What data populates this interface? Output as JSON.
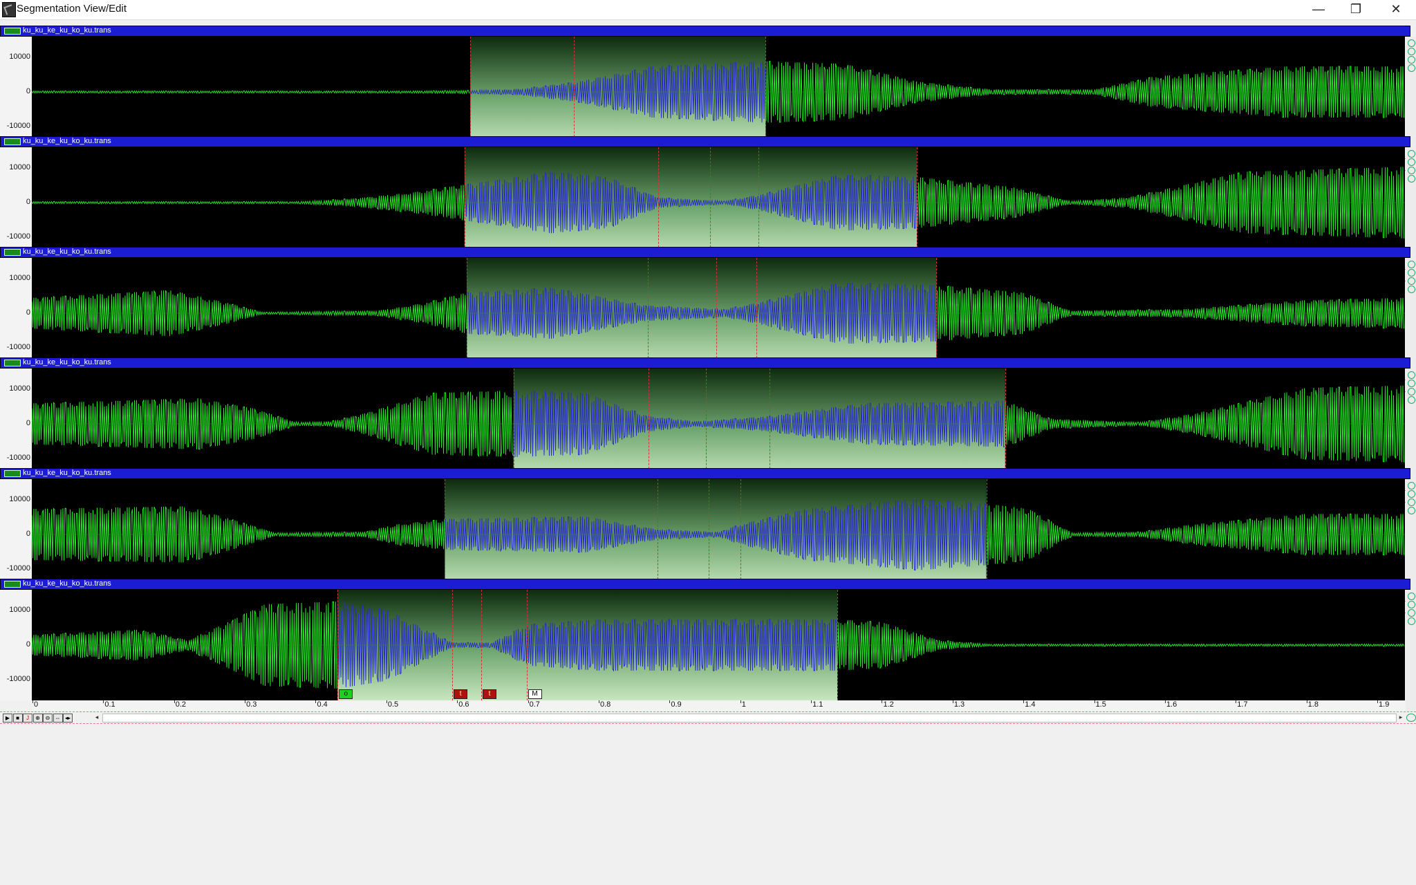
{
  "window": {
    "title": "Segmentation View/Edit",
    "minimize": "—",
    "restore": "❐",
    "close": "✕"
  },
  "colors": {
    "waveform": "#22e622",
    "selected_waveform": "#2a2ac8",
    "header": "#1c1cd2",
    "boundary": "#d83030"
  },
  "toolbar_icons": [
    "play-icon",
    "stop-icon",
    "record-icon",
    "zoom-in-icon",
    "zoom-out-icon",
    "fit-icon",
    "scroll-icon"
  ],
  "panes": [
    {
      "filename": "ku_ku_ke_ku_ko_ku.trans",
      "y_ticks": [
        "10000",
        "0",
        "-10000"
      ],
      "x_ticks": [
        "0",
        "0.1",
        "0.2",
        "0.3",
        "0.4",
        "0.5",
        "0.6",
        "0.7",
        "0.8",
        "0.9"
      ],
      "x_range": [
        0,
        0.93
      ],
      "selection": [
        0.297,
        0.497
      ],
      "boundaries": [
        0.297,
        0.367,
        0.497
      ],
      "markers": [
        {
          "t": 0.297,
          "label": "t",
          "kind": "t"
        },
        {
          "t": 0.367,
          "label": "M",
          "kind": "m"
        }
      ],
      "envelope": [
        [
          0,
          0.02
        ],
        [
          0.25,
          0.02
        ],
        [
          0.297,
          0.03
        ],
        [
          0.33,
          0.06
        ],
        [
          0.37,
          0.2
        ],
        [
          0.42,
          0.5
        ],
        [
          0.497,
          0.6
        ],
        [
          0.55,
          0.55
        ],
        [
          0.6,
          0.2
        ],
        [
          0.65,
          0.05
        ],
        [
          0.72,
          0.05
        ],
        [
          0.76,
          0.3
        ],
        [
          0.85,
          0.5
        ],
        [
          0.93,
          0.5
        ]
      ]
    },
    {
      "filename": "ku_ku_ke_ku_ko_ku.trans",
      "y_ticks": [
        "10000",
        "0",
        "-10000"
      ],
      "x_ticks": [
        "0",
        "0.1",
        "0.2",
        "0.3",
        "0.4",
        "0.5",
        "0.6",
        "0.7",
        "0.8",
        "0.9",
        "1",
        "1.1"
      ],
      "x_range": [
        0,
        1.19
      ],
      "selection": [
        0.375,
        0.767
      ],
      "boundaries": [
        0.375,
        0.543,
        0.588,
        0.63,
        0.767
      ],
      "markers": [
        {
          "t": 0.375,
          "label": "M",
          "kind": "m"
        },
        {
          "t": 0.543,
          "label": "t",
          "kind": "t"
        },
        {
          "t": 0.588,
          "label": "t",
          "kind": "t"
        },
        {
          "t": 0.63,
          "label": "M",
          "kind": "m"
        }
      ],
      "envelope": [
        [
          0,
          0.02
        ],
        [
          0.23,
          0.02
        ],
        [
          0.28,
          0.08
        ],
        [
          0.33,
          0.2
        ],
        [
          0.375,
          0.35
        ],
        [
          0.45,
          0.6
        ],
        [
          0.5,
          0.5
        ],
        [
          0.543,
          0.1
        ],
        [
          0.6,
          0.03
        ],
        [
          0.63,
          0.15
        ],
        [
          0.7,
          0.55
        ],
        [
          0.767,
          0.5
        ],
        [
          0.85,
          0.3
        ],
        [
          0.9,
          0.03
        ],
        [
          0.95,
          0.1
        ],
        [
          1.05,
          0.6
        ],
        [
          1.19,
          0.7
        ]
      ]
    },
    {
      "filename": "ku_ku_ke_ku_ko_ku.trans",
      "y_ticks": [
        "10000",
        "0",
        "-10000"
      ],
      "x_ticks": [
        "0",
        "0.1",
        "0.2",
        "0.3",
        "0.4",
        "0.5",
        "0.6",
        "0.7",
        "0.8",
        "0.9",
        "1",
        "1.1"
      ],
      "x_range": [
        0,
        1.19
      ],
      "selection": [
        0.377,
        0.784
      ],
      "boundaries": [
        0.377,
        0.534,
        0.593,
        0.628,
        0.784
      ],
      "markers": [
        {
          "t": 0.377,
          "label": "M",
          "kind": "m"
        },
        {
          "t": 0.534,
          "label": "t",
          "kind": "t"
        },
        {
          "t": 0.593,
          "label": "t",
          "kind": "t"
        },
        {
          "t": 0.628,
          "label": "o",
          "kind": "o"
        }
      ],
      "envelope": [
        [
          0,
          0.3
        ],
        [
          0.12,
          0.45
        ],
        [
          0.17,
          0.2
        ],
        [
          0.2,
          0.02
        ],
        [
          0.3,
          0.05
        ],
        [
          0.34,
          0.2
        ],
        [
          0.377,
          0.4
        ],
        [
          0.45,
          0.5
        ],
        [
          0.534,
          0.15
        ],
        [
          0.6,
          0.08
        ],
        [
          0.628,
          0.2
        ],
        [
          0.7,
          0.6
        ],
        [
          0.784,
          0.55
        ],
        [
          0.86,
          0.4
        ],
        [
          0.9,
          0.05
        ],
        [
          1.0,
          0.08
        ],
        [
          1.1,
          0.25
        ],
        [
          1.19,
          0.3
        ]
      ]
    },
    {
      "filename": "ku_ku_ke_ku_ko_ku.trans",
      "y_ticks": [
        "10000",
        "0",
        "-10000"
      ],
      "x_ticks": [
        "0",
        "0.1",
        "0.2",
        "0.3",
        "0.4",
        "0.5",
        "0.6",
        "0.7",
        "0.8",
        "0.9",
        "1",
        "1.1",
        "1.2"
      ],
      "x_range": [
        0,
        1.24
      ],
      "selection": [
        0.435,
        0.879
      ],
      "boundaries": [
        0.435,
        0.557,
        0.609,
        0.666,
        0.879
      ],
      "markers": [
        {
          "t": 0.435,
          "label": "o",
          "kind": "o"
        },
        {
          "t": 0.557,
          "label": "t",
          "kind": "t"
        },
        {
          "t": 0.609,
          "label": "t",
          "kind": "t"
        },
        {
          "t": 0.666,
          "label": "M",
          "kind": "m"
        }
      ],
      "envelope": [
        [
          0,
          0.4
        ],
        [
          0.15,
          0.5
        ],
        [
          0.2,
          0.3
        ],
        [
          0.24,
          0.03
        ],
        [
          0.27,
          0.05
        ],
        [
          0.3,
          0.2
        ],
        [
          0.36,
          0.6
        ],
        [
          0.435,
          0.65
        ],
        [
          0.5,
          0.6
        ],
        [
          0.557,
          0.15
        ],
        [
          0.6,
          0.05
        ],
        [
          0.666,
          0.15
        ],
        [
          0.75,
          0.4
        ],
        [
          0.879,
          0.45
        ],
        [
          0.92,
          0.1
        ],
        [
          1.0,
          0.03
        ],
        [
          1.05,
          0.2
        ],
        [
          1.15,
          0.7
        ],
        [
          1.24,
          0.75
        ]
      ]
    },
    {
      "filename": "ku_ku_ke_ku_ko_ku.trans",
      "y_ticks": [
        "10000",
        "0",
        "-10000"
      ],
      "x_ticks": [
        "0",
        "0.1",
        "0.2",
        "0.3",
        "0.4",
        "0.5",
        "0.6",
        "0.7",
        "0.8",
        "0.9",
        "1",
        "1.1",
        "1.2"
      ],
      "x_range": [
        0,
        1.24
      ],
      "selection": [
        0.373,
        0.862
      ],
      "boundaries": [
        0.373,
        0.565,
        0.611,
        0.64,
        0.862
      ],
      "markers": [
        {
          "t": 0.373,
          "label": "M",
          "kind": "m"
        },
        {
          "t": 0.565,
          "label": "t",
          "kind": "t"
        },
        {
          "t": 0.611,
          "label": "t",
          "kind": "t"
        },
        {
          "t": 0.64,
          "label": "o",
          "kind": "o"
        }
      ],
      "envelope": [
        [
          0,
          0.5
        ],
        [
          0.14,
          0.55
        ],
        [
          0.18,
          0.3
        ],
        [
          0.22,
          0.03
        ],
        [
          0.3,
          0.05
        ],
        [
          0.33,
          0.2
        ],
        [
          0.373,
          0.3
        ],
        [
          0.5,
          0.35
        ],
        [
          0.565,
          0.1
        ],
        [
          0.62,
          0.05
        ],
        [
          0.64,
          0.2
        ],
        [
          0.7,
          0.5
        ],
        [
          0.8,
          0.7
        ],
        [
          0.862,
          0.6
        ],
        [
          0.9,
          0.5
        ],
        [
          0.94,
          0.03
        ],
        [
          1.0,
          0.05
        ],
        [
          1.05,
          0.2
        ],
        [
          1.15,
          0.4
        ],
        [
          1.24,
          0.4
        ]
      ]
    },
    {
      "filename": "ku_ku_ke_ku_ko_ku.trans",
      "y_ticks": [
        "10000",
        "0",
        "-10000"
      ],
      "x_ticks": [
        "0",
        "0.1",
        "0.2",
        "0.3",
        "0.4",
        "0.5",
        "0.6",
        "0.7",
        "0.8",
        "0.9",
        "1",
        "1.1",
        "1.2",
        "1.3",
        "1.4",
        "1.5",
        "1.6",
        "1.7",
        "1.8",
        "1.9"
      ],
      "x_range": [
        0,
        1.94
      ],
      "selection": [
        0.432,
        1.138
      ],
      "boundaries": [
        0.432,
        0.594,
        0.635,
        0.699,
        1.138
      ],
      "markers": [
        {
          "t": 0.432,
          "label": "o",
          "kind": "o"
        },
        {
          "t": 0.594,
          "label": "t",
          "kind": "t"
        },
        {
          "t": 0.635,
          "label": "t",
          "kind": "t"
        },
        {
          "t": 0.699,
          "label": "M",
          "kind": "m"
        }
      ],
      "envelope": [
        [
          0,
          0.2
        ],
        [
          0.15,
          0.3
        ],
        [
          0.22,
          0.1
        ],
        [
          0.27,
          0.4
        ],
        [
          0.33,
          0.8
        ],
        [
          0.432,
          0.85
        ],
        [
          0.5,
          0.7
        ],
        [
          0.594,
          0.05
        ],
        [
          0.65,
          0.05
        ],
        [
          0.699,
          0.4
        ],
        [
          0.8,
          0.5
        ],
        [
          1.138,
          0.5
        ],
        [
          1.2,
          0.45
        ],
        [
          1.28,
          0.1
        ],
        [
          1.35,
          0.02
        ],
        [
          1.94,
          0.02
        ]
      ]
    }
  ]
}
